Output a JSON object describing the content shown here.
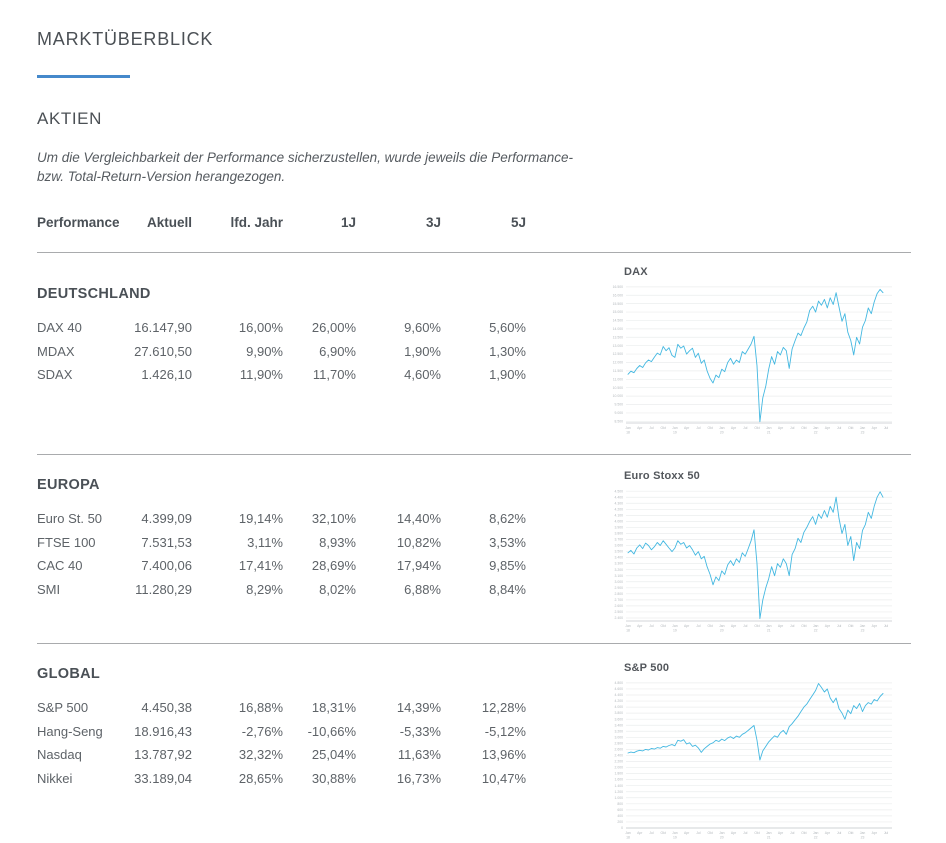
{
  "page": {
    "title": "MARKTÜBERBLICK",
    "section": "AKTIEN",
    "note_line1": "Um die Vergleichbarkeit der Performance sicherzustellen, wurde jeweils die Performance-",
    "note_line2": "bzw. Total-Return-Version herangezogen.",
    "accent_color": "#4589cb",
    "line_color": "#44b8e1"
  },
  "table": {
    "headers": [
      "Performance",
      "Aktuell",
      "lfd. Jahr",
      "1J",
      "3J",
      "5J"
    ],
    "groups": [
      {
        "name": "DEUTSCHLAND",
        "rows": [
          [
            "DAX 40",
            "16.147,90",
            "16,00%",
            "26,00%",
            "9,60%",
            "5,60%"
          ],
          [
            "MDAX",
            "27.610,50",
            "9,90%",
            "6,90%",
            "1,90%",
            "1,30%"
          ],
          [
            "SDAX",
            "1.426,10",
            "11,90%",
            "11,70%",
            "4,60%",
            "1,90%"
          ]
        ]
      },
      {
        "name": "EUROPA",
        "rows": [
          [
            "Euro St. 50",
            "4.399,09",
            "19,14%",
            "32,10%",
            "14,40%",
            "8,62%"
          ],
          [
            "FTSE 100",
            "7.531,53",
            "3,11%",
            "8,93%",
            "10,82%",
            "3,53%"
          ],
          [
            "CAC 40",
            "7.400,06",
            "17,41%",
            "28,69%",
            "17,94%",
            "9,85%"
          ],
          [
            "SMI",
            "11.280,29",
            "8,29%",
            "8,02%",
            "6,88%",
            "8,84%"
          ]
        ]
      },
      {
        "name": "GLOBAL",
        "rows": [
          [
            "S&P 500",
            "4.450,38",
            "16,88%",
            "18,31%",
            "14,39%",
            "12,28%"
          ],
          [
            "Hang-Seng",
            "18.916,43",
            "-2,76%",
            "-10,66%",
            "-5,33%",
            "-5,12%"
          ],
          [
            "Nasdaq",
            "13.787,92",
            "32,32%",
            "25,04%",
            "11,63%",
            "13,96%"
          ],
          [
            "Nikkei",
            "33.189,04",
            "28,65%",
            "30,88%",
            "16,73%",
            "10,47%"
          ]
        ]
      }
    ]
  },
  "chart_data": [
    {
      "type": "line",
      "title": "DAX",
      "ylim": [
        8400,
        16550
      ],
      "yticks": {
        "start": 8500,
        "end": 16500,
        "step": 500
      },
      "grid": true,
      "xticks": [
        "Jan 18",
        "Apr",
        "Jul",
        "Okt",
        "Jan 19",
        "Apr",
        "Jul",
        "Okt",
        "Jan 20",
        "Apr",
        "Jul",
        "Okt",
        "Jan 21",
        "Apr",
        "Jul",
        "Okt",
        "Jan 22",
        "Apr",
        "Jul",
        "Okt",
        "Jan 23",
        "Apr",
        "Jul"
      ],
      "values": [
        11300,
        11480,
        11390,
        11640,
        11820,
        11700,
        11980,
        12150,
        12050,
        12320,
        12560,
        12450,
        12950,
        12700,
        12880,
        12420,
        12300,
        13080,
        12850,
        12980,
        12500,
        12700,
        12850,
        12300,
        12550,
        11950,
        12150,
        11500,
        11050,
        10780,
        11250,
        11100,
        11600,
        11450,
        12000,
        12250,
        11900,
        12150,
        12000,
        12650,
        12500,
        12800,
        13100,
        13560,
        11800,
        8480,
        9900,
        10600,
        11600,
        12350,
        11900,
        12650,
        12450,
        12900,
        12700,
        11650,
        12800,
        13300,
        13750,
        13600,
        14050,
        14400,
        15100,
        15350,
        15000,
        15650,
        15400,
        15750,
        15250,
        15850,
        15450,
        16150,
        15300,
        14450,
        14900,
        13800,
        13300,
        12450,
        13500,
        13100,
        14100,
        14500,
        15250,
        14900,
        15600,
        16100,
        16350,
        16150
      ]
    },
    {
      "type": "line",
      "title": "Euro Stoxx 50",
      "ylim": [
        2350,
        4520
      ],
      "yticks": {
        "start": 2400,
        "end": 4500,
        "step": 100
      },
      "grid": true,
      "xticks": [
        "Jan 18",
        "Apr",
        "Jul",
        "Okt",
        "Jan 19",
        "Apr",
        "Jul",
        "Okt",
        "Jan 20",
        "Apr",
        "Jul",
        "Okt",
        "Jan 21",
        "Apr",
        "Jul",
        "Okt",
        "Jan 22",
        "Apr",
        "Jul",
        "Okt",
        "Jan 23",
        "Apr",
        "Jul"
      ],
      "values": [
        3480,
        3520,
        3460,
        3560,
        3610,
        3550,
        3640,
        3600,
        3530,
        3580,
        3650,
        3600,
        3680,
        3620,
        3560,
        3500,
        3560,
        3680,
        3620,
        3650,
        3560,
        3600,
        3530,
        3440,
        3500,
        3380,
        3420,
        3250,
        3120,
        2950,
        3080,
        3020,
        3180,
        3120,
        3280,
        3350,
        3270,
        3380,
        3320,
        3480,
        3420,
        3550,
        3680,
        3860,
        3300,
        2390,
        2700,
        2900,
        3050,
        3250,
        3100,
        3300,
        3240,
        3380,
        3300,
        3100,
        3450,
        3550,
        3720,
        3650,
        3820,
        3900,
        4000,
        4080,
        3950,
        4120,
        4050,
        4180,
        4070,
        4250,
        4150,
        4400,
        4050,
        3800,
        3950,
        3600,
        3750,
        3350,
        3650,
        3550,
        3850,
        3950,
        4150,
        4050,
        4250,
        4400,
        4490,
        4400
      ]
    },
    {
      "type": "line",
      "title": "S&P 500",
      "ylim": [
        0,
        4830
      ],
      "yticks": {
        "start": 0,
        "end": 4800,
        "step": 200
      },
      "grid": true,
      "xticks": [
        "Jan 18",
        "Apr",
        "Jul",
        "Okt",
        "Jan 19",
        "Apr",
        "Jul",
        "Okt",
        "Jan 20",
        "Apr",
        "Jul",
        "Okt",
        "Jan 21",
        "Apr",
        "Jul",
        "Okt",
        "Jan 22",
        "Apr",
        "Jul",
        "Okt",
        "Jan 23",
        "Apr",
        "Jul"
      ],
      "values": [
        2480,
        2510,
        2490,
        2540,
        2570,
        2550,
        2600,
        2580,
        2630,
        2610,
        2660,
        2640,
        2700,
        2680,
        2730,
        2760,
        2720,
        2900,
        2870,
        2920,
        2780,
        2820,
        2700,
        2740,
        2650,
        2500,
        2620,
        2700,
        2780,
        2820,
        2900,
        2860,
        2940,
        2890,
        2980,
        3020,
        2960,
        3040,
        3000,
        3100,
        3150,
        3230,
        3310,
        3390,
        2900,
        2250,
        2550,
        2700,
        2850,
        2950,
        3050,
        3000,
        3150,
        3230,
        3100,
        3350,
        3450,
        3580,
        3700,
        3850,
        4000,
        4100,
        4250,
        4400,
        4550,
        4780,
        4650,
        4500,
        4600,
        4300,
        4150,
        4300,
        3950,
        3800,
        3600,
        3900,
        3780,
        4050,
        3950,
        4120,
        3850,
        4050,
        4150,
        4100,
        4250,
        4200,
        4350,
        4450
      ]
    }
  ]
}
